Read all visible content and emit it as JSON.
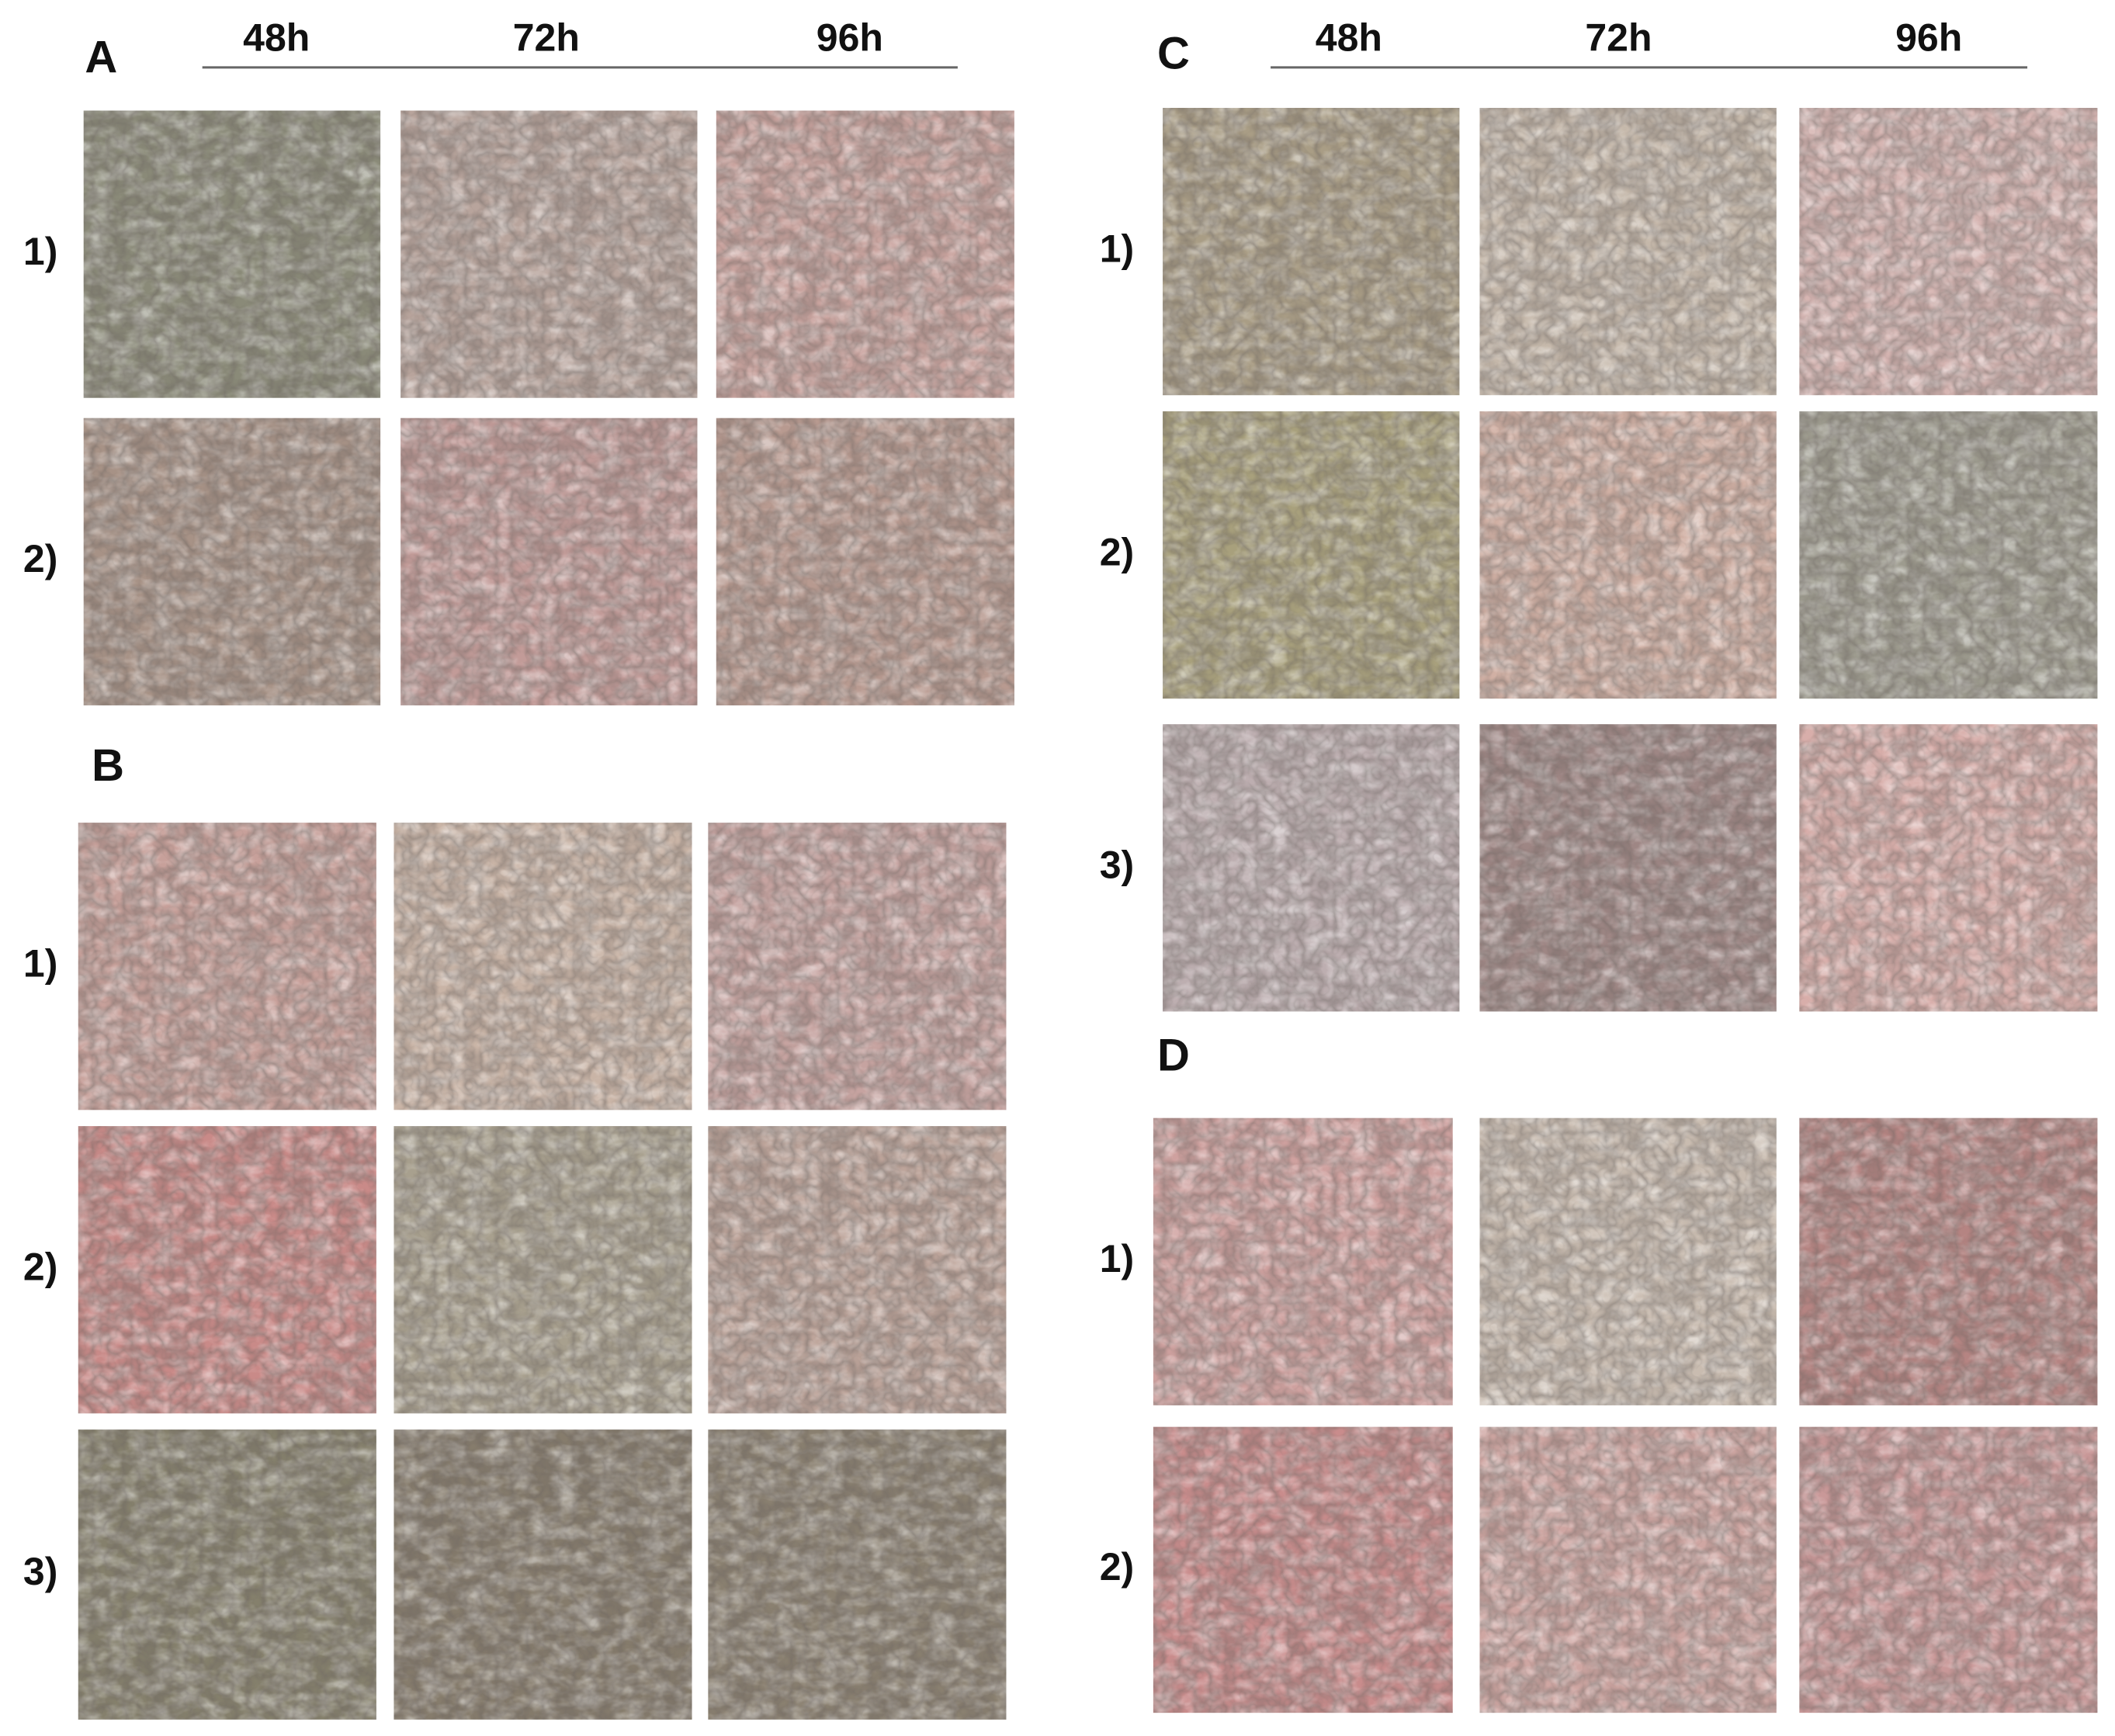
{
  "panels": [
    {
      "label": "A",
      "time_headers": [
        "48h",
        "72h",
        "96h"
      ],
      "row_labels": [
        "1)",
        "2)"
      ]
    },
    {
      "label": "B",
      "row_labels": [
        "1)",
        "2)",
        "3)"
      ]
    },
    {
      "label": "C",
      "time_headers": [
        "48h",
        "72h",
        "96h"
      ],
      "row_labels": [
        "1)",
        "2)",
        "3)"
      ]
    },
    {
      "label": "D",
      "row_labels": [
        "1)",
        "2)"
      ]
    }
  ]
}
